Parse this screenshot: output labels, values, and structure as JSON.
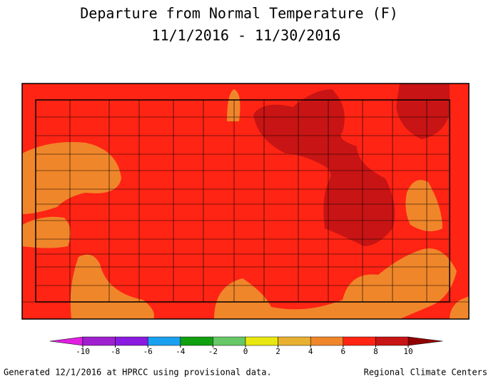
{
  "title": [
    "Departure from Normal Temperature (F)",
    "11/1/2016 - 11/30/2016"
  ],
  "legend": {
    "ticks": [
      -10,
      -8,
      -6,
      -4,
      -2,
      0,
      2,
      4,
      6,
      8,
      10
    ],
    "colors": [
      "#a020d0",
      "#8a1ae0",
      "#1aa0f0",
      "#10a010",
      "#66c866",
      "#e8e810",
      "#e8b030",
      "#f0862a",
      "#ff2414",
      "#c81414"
    ],
    "low_color": "#e020e0",
    "high_color": "#900000"
  },
  "footer": {
    "left": "Generated 12/1/2016 at HPRCC using provisional data.",
    "right": "Regional Climate Centers"
  }
}
